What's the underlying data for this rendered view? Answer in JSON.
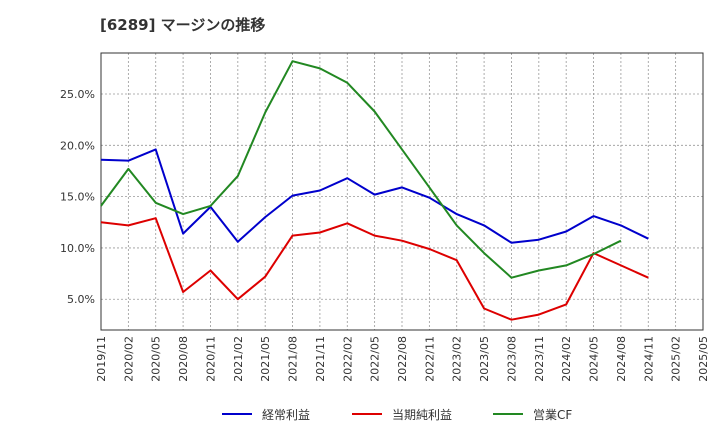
{
  "chart_data": {
    "type": "line",
    "title": "[6289]  マージンの推移",
    "x": [
      "2019/11",
      "2020/02",
      "2020/05",
      "2020/08",
      "2020/11",
      "2021/02",
      "2021/05",
      "2021/08",
      "2021/11",
      "2022/02",
      "2022/05",
      "2022/08",
      "2022/11",
      "2023/02",
      "2023/05",
      "2023/08",
      "2023/11",
      "2024/02",
      "2024/05",
      "2024/08",
      "2024/11",
      "2025/02",
      "2025/05"
    ],
    "ylim": [
      2.0,
      29.0
    ],
    "yticks": [
      5.0,
      10.0,
      15.0,
      20.0,
      25.0
    ],
    "ytick_labels": [
      "5.0%",
      "10.0%",
      "15.0%",
      "20.0%",
      "25.0%"
    ],
    "grid": true,
    "legend_position": "bottom",
    "series": [
      {
        "name": "経常利益",
        "color": "#0000cc",
        "values": [
          18.6,
          18.5,
          19.6,
          11.4,
          14.0,
          10.6,
          13.0,
          15.1,
          15.6,
          16.8,
          15.2,
          15.9,
          14.9,
          13.3,
          12.2,
          10.5,
          10.8,
          11.6,
          13.1,
          12.2,
          10.9,
          null,
          null
        ]
      },
      {
        "name": "当期純利益",
        "color": "#dd0000",
        "values": [
          12.5,
          12.2,
          12.9,
          5.7,
          7.8,
          5.0,
          7.2,
          11.2,
          11.5,
          12.4,
          11.2,
          10.7,
          9.9,
          8.8,
          4.1,
          3.0,
          3.5,
          4.5,
          9.5,
          8.3,
          7.1,
          null,
          null
        ]
      },
      {
        "name": "営業CF",
        "color": "#228822",
        "values": [
          14.1,
          17.7,
          14.4,
          13.3,
          14.1,
          17.0,
          23.2,
          28.2,
          27.5,
          26.1,
          23.3,
          19.6,
          15.9,
          12.2,
          9.5,
          7.1,
          7.8,
          8.3,
          9.4,
          10.7,
          null,
          null,
          null
        ]
      }
    ]
  }
}
